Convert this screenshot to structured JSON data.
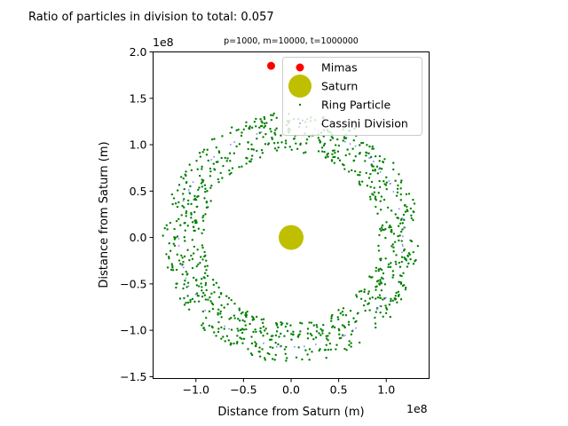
{
  "chart_data": {
    "type": "scatter",
    "suptitle": "Ratio of particles in division to total: 0.057",
    "title": "p=1000, m=10000, t=1000000",
    "xlabel": "Distance from Saturn (m)",
    "ylabel": "Distance from Saturn (m)",
    "x_offset_label": "1e8",
    "y_offset_label": "1e8",
    "xlim": [
      -1.45,
      1.45
    ],
    "ylim": [
      -1.52,
      2.0
    ],
    "x_ticks": [
      -1.0,
      -0.5,
      0.0,
      0.5,
      1.0
    ],
    "x_tick_labels": [
      "−1.0",
      "−0.5",
      "0.0",
      "0.5",
      "1.0"
    ],
    "y_ticks": [
      -1.5,
      -1.0,
      -0.5,
      0.0,
      0.5,
      1.0,
      1.5,
      2.0
    ],
    "y_tick_labels": [
      "−1.5",
      "−1.0",
      "−0.5",
      "0.0",
      "0.5",
      "1.0",
      "1.5",
      "2.0"
    ],
    "grid": false,
    "legend_position": "upper right",
    "series": [
      {
        "name": "Mimas",
        "color": "#ff0000",
        "points": [
          [
            -0.21,
            1.85
          ]
        ]
      },
      {
        "name": "Saturn",
        "color": "#bfbf00",
        "points": [
          [
            0.0,
            0.0
          ]
        ]
      },
      {
        "name": "Ring Particle",
        "color": "#008000",
        "ring": {
          "r_min": 0.92,
          "r_max": 1.35,
          "count": 943
        }
      },
      {
        "name": "Cassini Division",
        "color": "#7f7fff",
        "ring": {
          "r_min": 1.17,
          "r_max": 1.2,
          "count": 57
        }
      }
    ]
  }
}
